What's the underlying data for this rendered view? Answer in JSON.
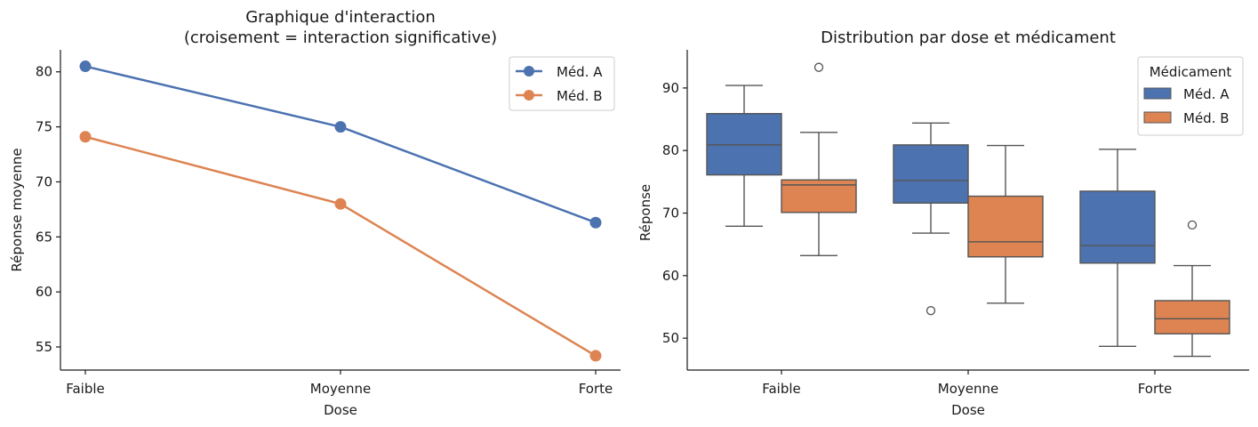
{
  "colors": {
    "series_a": "#4c72b0",
    "series_b": "#dd8452",
    "box_line": "#555555",
    "outlier": "#555555"
  },
  "chart_data": [
    {
      "type": "line",
      "title_line1": "Graphique d'interaction",
      "title_line2": "(croisement = interaction significative)",
      "xlabel": "Dose",
      "ylabel": "Réponse moyenne",
      "categories": [
        "Faible",
        "Moyenne",
        "Forte"
      ],
      "ylim": [
        52.9,
        82.0
      ],
      "yticks": [
        55,
        60,
        65,
        70,
        75,
        80
      ],
      "legend_position": "top-right",
      "series": [
        {
          "name": "Méd. A",
          "values": [
            80.5,
            75.0,
            66.3
          ]
        },
        {
          "name": "Méd. B",
          "values": [
            74.1,
            68.0,
            54.2
          ]
        }
      ]
    },
    {
      "type": "box",
      "title": "Distribution par dose et médicament",
      "xlabel": "Dose",
      "ylabel": "Réponse",
      "categories": [
        "Faible",
        "Moyenne",
        "Forte"
      ],
      "ylim": [
        44.9,
        96.1
      ],
      "yticks": [
        50,
        60,
        70,
        80,
        90
      ],
      "legend_title": "Médicament",
      "legend_position": "top-right",
      "series": [
        {
          "name": "Méd. A",
          "boxes": [
            {
              "whisker_low": 67.9,
              "q1": 76.1,
              "median": 80.9,
              "q3": 85.9,
              "whisker_high": 90.4,
              "outliers": []
            },
            {
              "whisker_low": 66.8,
              "q1": 71.6,
              "median": 75.2,
              "q3": 80.9,
              "whisker_high": 84.4,
              "outliers": [
                54.4
              ]
            },
            {
              "whisker_low": 48.7,
              "q1": 62.0,
              "median": 64.8,
              "q3": 73.5,
              "whisker_high": 80.2,
              "outliers": []
            }
          ]
        },
        {
          "name": "Méd. B",
          "boxes": [
            {
              "whisker_low": 63.2,
              "q1": 70.1,
              "median": 74.5,
              "q3": 75.3,
              "whisker_high": 82.9,
              "outliers": [
                93.3
              ]
            },
            {
              "whisker_low": 55.6,
              "q1": 63.0,
              "median": 65.4,
              "q3": 72.7,
              "whisker_high": 80.8,
              "outliers": []
            },
            {
              "whisker_low": 47.1,
              "q1": 50.7,
              "median": 53.1,
              "q3": 56.0,
              "whisker_high": 61.6,
              "outliers": [
                68.1
              ]
            }
          ]
        }
      ]
    }
  ]
}
